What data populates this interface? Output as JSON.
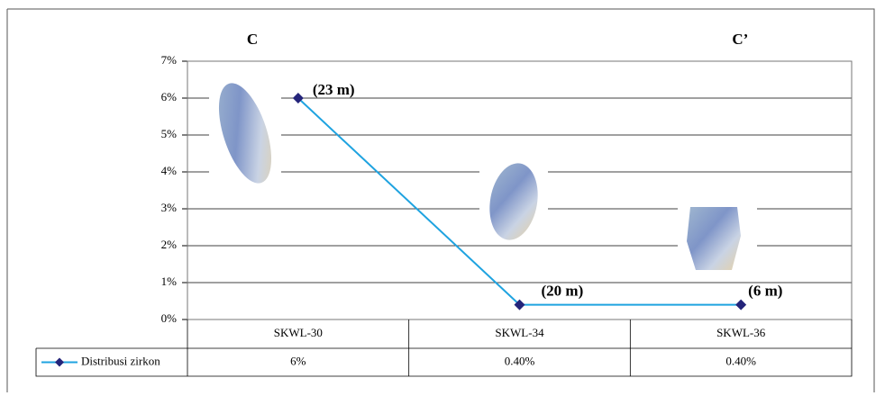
{
  "chart_data": {
    "type": "line",
    "categories": [
      "SKWL-30",
      "SKWL-34",
      "SKWL-36"
    ],
    "series": [
      {
        "name": "Distribusi zirkon",
        "color": "#1fa3e0",
        "marker_color": "#24247a",
        "values": [
          6,
          0.4,
          0.4
        ],
        "value_labels": [
          "6%",
          "0.40%",
          "0.40%"
        ],
        "point_labels": [
          "(23 m)",
          "(20 m)",
          "(6 m)"
        ]
      }
    ],
    "section_labels": [
      "C",
      "C’"
    ],
    "ylim": [
      0,
      7
    ],
    "yticks": [
      {
        "value": 0,
        "label": "0%"
      },
      {
        "value": 1,
        "label": "1%"
      },
      {
        "value": 2,
        "label": "2%"
      },
      {
        "value": 3,
        "label": "3%"
      },
      {
        "value": 4,
        "label": "4%"
      },
      {
        "value": 5,
        "label": "5%"
      },
      {
        "value": 6,
        "label": "6%"
      },
      {
        "value": 7,
        "label": "7%"
      }
    ],
    "grid": true,
    "data_table": true
  }
}
